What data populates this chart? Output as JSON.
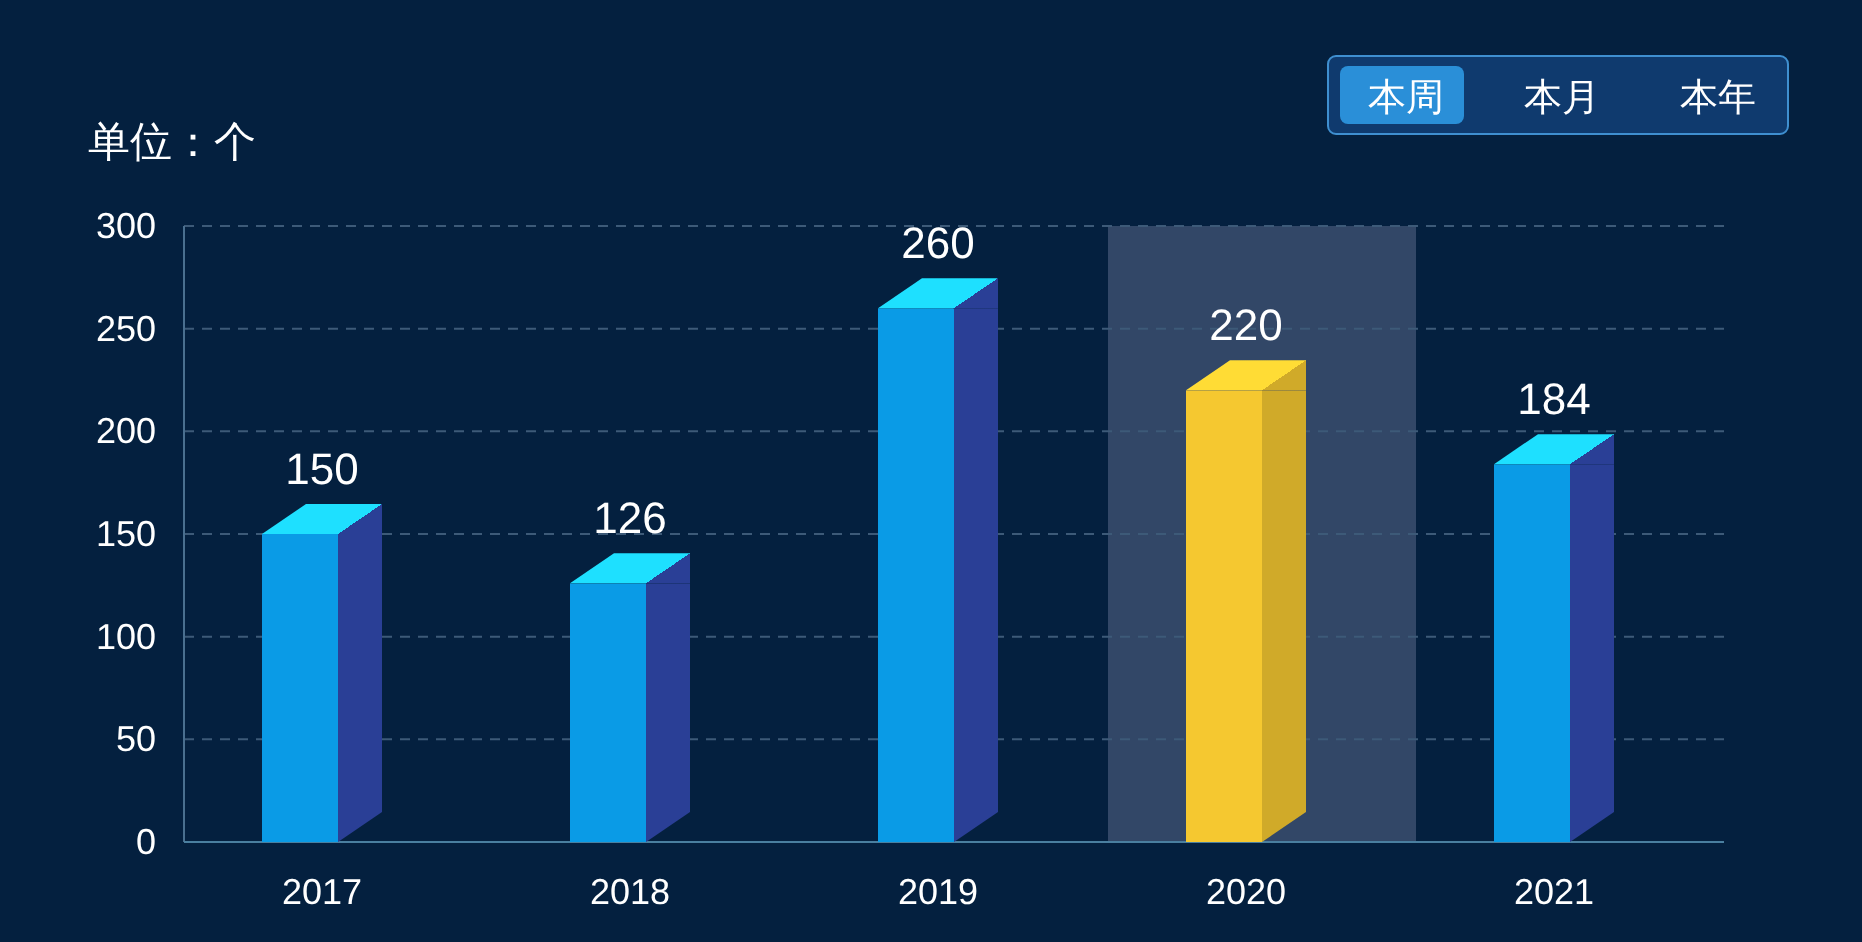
{
  "chart_data": {
    "type": "bar",
    "ylabel": "单位：个",
    "categories": [
      "2017",
      "2018",
      "2019",
      "2020",
      "2021"
    ],
    "values": [
      150,
      126,
      260,
      220,
      184
    ],
    "colors": [
      "#0a9be6",
      "#0a9be6",
      "#0a9be6",
      "#f5c830",
      "#0a9be6"
    ],
    "ylim": [
      0,
      300
    ],
    "yticks": [
      0,
      50,
      100,
      150,
      200,
      250,
      300
    ],
    "grid": "y",
    "data_labels": true,
    "bands": [
      {
        "axis": "x",
        "from": "2020",
        "to": "2020",
        "color": "#3b4f6e"
      }
    ],
    "annotations": [
      "本周",
      "本月",
      "本年"
    ]
  }
}
